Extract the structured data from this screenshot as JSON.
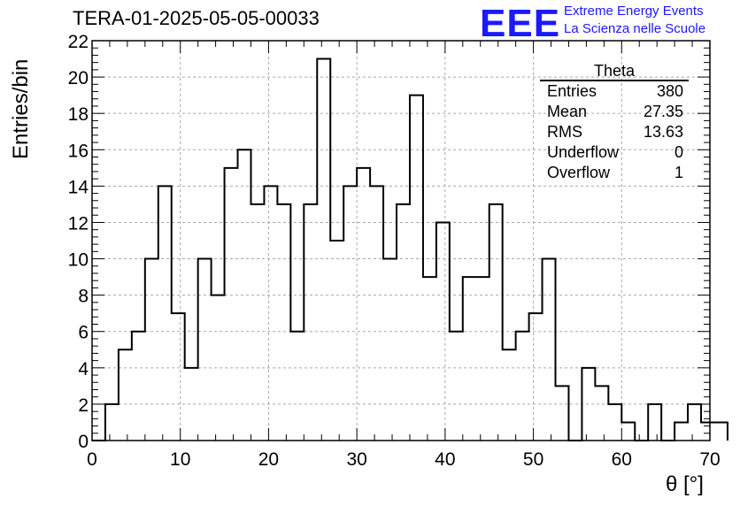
{
  "header": {
    "title": "TERA-01-2025-05-05-00033",
    "logo_text": "EEE",
    "logo_line1": "Extreme Energy Events",
    "logo_line2": "La Scienza nelle Scuole",
    "logo_color": "#1a1aff"
  },
  "stats": {
    "title": "Theta",
    "rows": [
      {
        "label": "Entries",
        "value": "380"
      },
      {
        "label": "Mean",
        "value": "27.35"
      },
      {
        "label": "RMS",
        "value": "13.63"
      },
      {
        "label": "Underflow",
        "value": "0"
      },
      {
        "label": "Overflow",
        "value": "1"
      }
    ]
  },
  "chart_data": {
    "type": "bar",
    "histogram_style": "step",
    "xlabel": "θ [°]",
    "ylabel": "Entries/bin",
    "xlim": [
      0,
      70
    ],
    "ylim": [
      0,
      22
    ],
    "grid": true,
    "x_ticks": [
      "0",
      "10",
      "20",
      "30",
      "40",
      "50",
      "60",
      "70"
    ],
    "y_ticks": [
      "0",
      "2",
      "4",
      "6",
      "8",
      "10",
      "12",
      "14",
      "16",
      "18",
      "20",
      "22"
    ],
    "bin_edges_start": 0,
    "bin_width": 1.5,
    "values": [
      0,
      2,
      5,
      6,
      10,
      14,
      7,
      4,
      10,
      8,
      15,
      16,
      13,
      14,
      13,
      6,
      13,
      21,
      11,
      14,
      15,
      14,
      10,
      13,
      19,
      9,
      12,
      6,
      9,
      9,
      13,
      5,
      6,
      7,
      10,
      3,
      0,
      4,
      3,
      2,
      1,
      0,
      2,
      0,
      1,
      2,
      1,
      1
    ]
  }
}
